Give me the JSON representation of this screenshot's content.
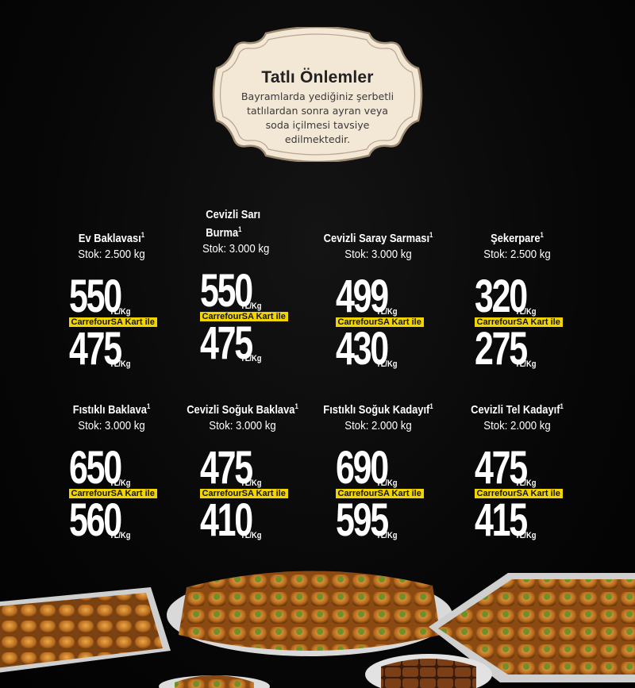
{
  "note": {
    "title": "Tatlı Önlemler",
    "body": "Bayramlarda yediğiniz şerbetli tatlılardan sonra ayran veya soda içilmesi tavsiye edilmektedir."
  },
  "unit": "TL/Kg",
  "card_label": "CarrefourSA Kart ile",
  "products": [
    {
      "name_line1": "Ev Baklavası",
      "name_line2": "",
      "sup": "1",
      "stock": "Stok: 2.500 kg",
      "price": "550",
      "card_price": "475"
    },
    {
      "name_line1": "Cevizli Sarı",
      "name_line2": "Burma",
      "sup": "1",
      "stock": "Stok: 3.000 kg",
      "price": "550",
      "card_price": "475"
    },
    {
      "name_line1": "Cevizli Saray Sarması",
      "name_line2": "",
      "sup": "1",
      "stock": "Stok: 3.000 kg",
      "price": "499",
      "card_price": "430"
    },
    {
      "name_line1": "Şekerpare",
      "name_line2": "",
      "sup": "1",
      "stock": "Stok: 2.500 kg",
      "price": "320",
      "card_price": "275"
    },
    {
      "name_line1": "Fıstıklı Baklava",
      "name_line2": "",
      "sup": "1",
      "stock": "Stok: 3.000 kg",
      "price": "650",
      "card_price": "560"
    },
    {
      "name_line1": "Cevizli Soğuk Baklava",
      "name_line2": "",
      "sup": "1",
      "stock": "Stok: 3.000 kg",
      "price": "475",
      "card_price": "410"
    },
    {
      "name_line1": "Fıstıklı Soğuk Kadayıf",
      "name_line2": "",
      "sup": "1",
      "stock": "Stok: 2.000 kg",
      "price": "690",
      "card_price": "595"
    },
    {
      "name_line1": "Cevizli Tel Kadayıf",
      "name_line2": "",
      "sup": "1",
      "stock": "Stok: 2.000 kg",
      "price": "475",
      "card_price": "415"
    }
  ],
  "colors": {
    "background": "#050505",
    "card_badge": "#f2d400",
    "note_fill": "#f3e7d6",
    "note_border": "#9b8870"
  }
}
